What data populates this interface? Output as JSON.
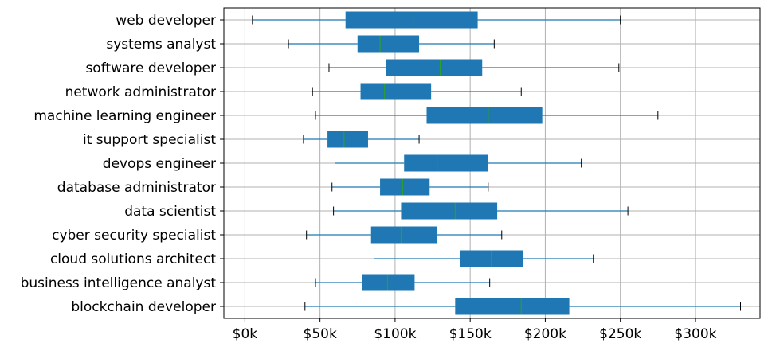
{
  "chart_data": {
    "type": "boxplot",
    "orientation": "horizontal",
    "title": "",
    "xlabel": "",
    "ylabel": "",
    "xlim": [
      -14000,
      343000
    ],
    "xticks": [
      0,
      50000,
      100000,
      150000,
      200000,
      250000,
      300000
    ],
    "xtick_labels": [
      "$0k",
      "$50k",
      "$100k",
      "$150k",
      "$200k",
      "$250k",
      "$300k"
    ],
    "grid": true,
    "colors": {
      "box": "#1f77b4",
      "median": "#2ca02c",
      "whisker": "#1f77b4",
      "cap": "#000000",
      "grid": "#b0b0b0"
    },
    "categories": [
      "web developer",
      "systems analyst",
      "software developer",
      "network administrator",
      "machine learning engineer",
      "it support specialist",
      "devops engineer",
      "database administrator",
      "data scientist",
      "cyber security specialist",
      "cloud solutions architect",
      "business intelligence analyst",
      "blockchain developer"
    ],
    "boxes": [
      {
        "min": 5000,
        "q1": 67000,
        "median": 112000,
        "q3": 155000,
        "max": 250000
      },
      {
        "min": 29000,
        "q1": 75000,
        "median": 90000,
        "q3": 116000,
        "max": 166000
      },
      {
        "min": 56000,
        "q1": 94000,
        "median": 130000,
        "q3": 158000,
        "max": 249000
      },
      {
        "min": 45000,
        "q1": 77000,
        "median": 93000,
        "q3": 124000,
        "max": 184000
      },
      {
        "min": 47000,
        "q1": 121000,
        "median": 162000,
        "q3": 198000,
        "max": 275000
      },
      {
        "min": 39000,
        "q1": 55000,
        "median": 66000,
        "q3": 82000,
        "max": 116000
      },
      {
        "min": 60000,
        "q1": 106000,
        "median": 128000,
        "q3": 162000,
        "max": 224000
      },
      {
        "min": 58000,
        "q1": 90000,
        "median": 105000,
        "q3": 123000,
        "max": 162000
      },
      {
        "min": 59000,
        "q1": 104000,
        "median": 140000,
        "q3": 168000,
        "max": 255000
      },
      {
        "min": 41000,
        "q1": 84000,
        "median": 104000,
        "q3": 128000,
        "max": 171000
      },
      {
        "min": 86000,
        "q1": 143000,
        "median": 164000,
        "q3": 185000,
        "max": 232000
      },
      {
        "min": 47000,
        "q1": 78000,
        "median": 95000,
        "q3": 113000,
        "max": 163000
      },
      {
        "min": 40000,
        "q1": 140000,
        "median": 184000,
        "q3": 216000,
        "max": 330000
      }
    ]
  }
}
